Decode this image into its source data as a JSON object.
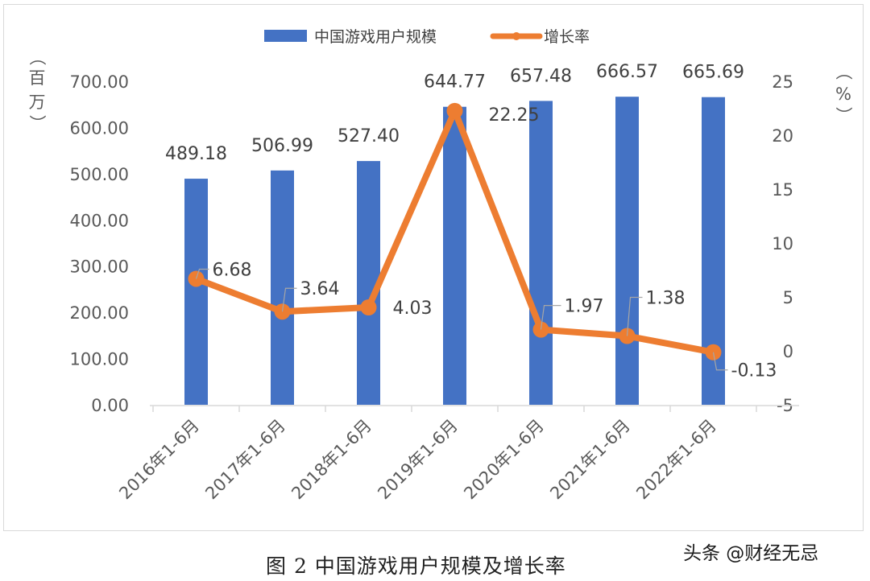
{
  "chart_data": {
    "type": "bar+line",
    "title": "",
    "categories": [
      "2016年1-6月",
      "2017年1-6月",
      "2018年1-6月",
      "2019年1-6月",
      "2020年1-6月",
      "2021年1-6月",
      "2022年1-6月"
    ],
    "series": [
      {
        "name": "中国游戏用户规模",
        "type": "bar",
        "axis": "left",
        "color": "#4472c4",
        "values": [
          489.18,
          506.99,
          527.4,
          644.77,
          657.48,
          666.57,
          665.69
        ],
        "labels": [
          "489.18",
          "506.99",
          "527.40",
          "644.77",
          "657.48",
          "666.57",
          "665.69"
        ]
      },
      {
        "name": "增长率",
        "type": "line",
        "axis": "right",
        "color": "#ed7d31",
        "values": [
          6.68,
          3.64,
          4.03,
          22.25,
          1.97,
          1.38,
          -0.13
        ],
        "labels": [
          "6.68",
          "3.64",
          "4.03",
          "22.25",
          "1.97",
          "1.38",
          "-0.13"
        ]
      }
    ],
    "ylabel": "（百万）",
    "y2label": "（%）",
    "ylim": [
      0,
      700
    ],
    "y2lim": [
      -5,
      25
    ],
    "yticks": [
      "0.00",
      "100.00",
      "200.00",
      "300.00",
      "400.00",
      "500.00",
      "600.00",
      "700.00"
    ],
    "y2ticks": [
      "-5",
      "0",
      "5",
      "10",
      "15",
      "20",
      "25"
    ],
    "legend_position": "top",
    "grid": false
  },
  "legend": {
    "bar_label": "中国游戏用户规模",
    "line_label": "增长率"
  },
  "axes": {
    "left_unit_chars": [
      "（",
      "百",
      "万",
      "）"
    ],
    "right_unit_chars": [
      "（",
      "%",
      "）"
    ]
  },
  "caption": "图 2 中国游戏用户规模及增长率",
  "watermark": "头条 @财经无忌"
}
